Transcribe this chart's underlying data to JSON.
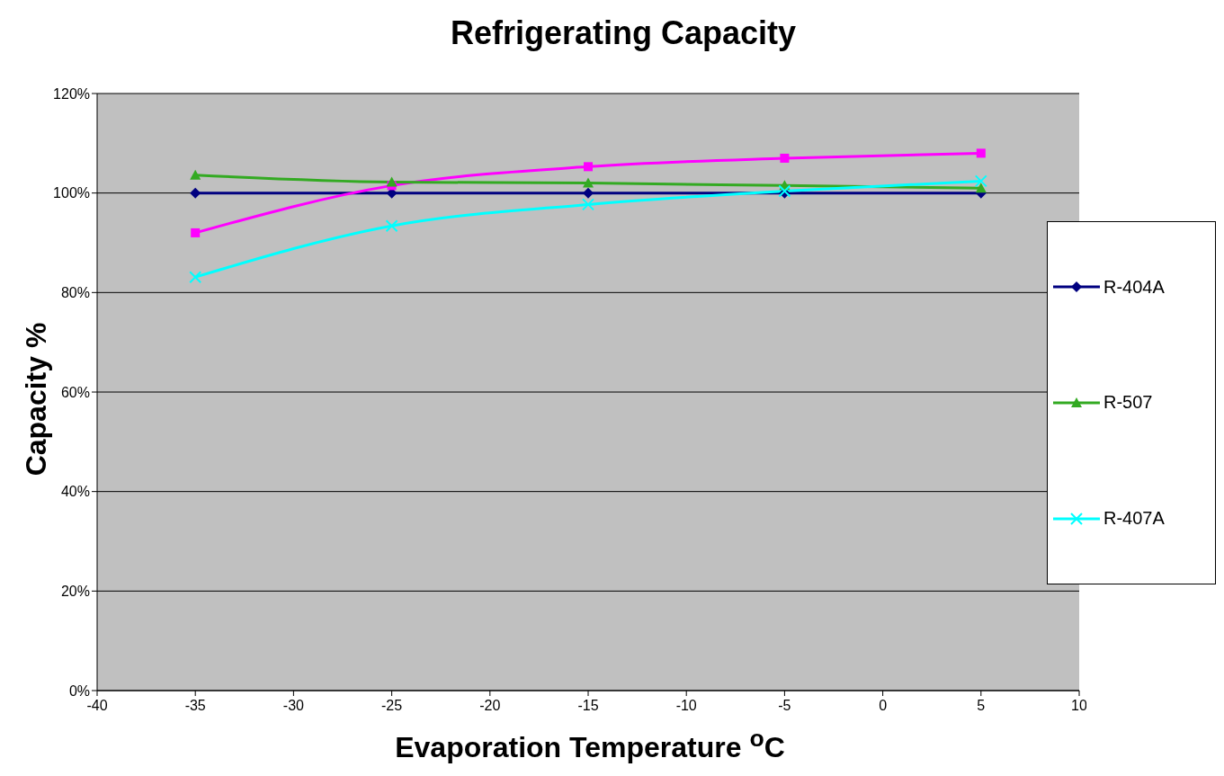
{
  "chart_data": {
    "type": "line",
    "title": "Refrigerating Capacity",
    "xlabel": "Evaporation Temperature $^{o}$C",
    "ylabel": "Capacity %",
    "x": [
      -35,
      -25,
      -15,
      -5,
      5
    ],
    "series": [
      {
        "name": "R-404A",
        "color": "#000080",
        "values": [
          100,
          100,
          100,
          100,
          100
        ],
        "marker": "diamond"
      },
      {
        "color": "#ff00ff",
        "values": [
          92,
          101.5,
          105.3,
          107,
          108
        ],
        "marker": "square"
      },
      {
        "name": "R-507",
        "color": "#33aa22",
        "values": [
          103.6,
          102.2,
          102,
          101.5,
          101
        ],
        "marker": "triangle"
      },
      {
        "name": "R-407A",
        "color": "#00ffff",
        "values": [
          83.1,
          93.4,
          97.7,
          100.4,
          102.4
        ],
        "marker": "cross"
      }
    ],
    "xlim": [
      -40,
      10
    ],
    "xticks": [
      -40,
      -35,
      -30,
      -25,
      -20,
      -15,
      -10,
      -5,
      0,
      5,
      10
    ],
    "ylim": [
      0,
      120
    ],
    "yticks": [
      {
        "value": 0,
        "label": "0%"
      },
      {
        "value": 20,
        "label": "20%"
      },
      {
        "value": 40,
        "label": "40%"
      },
      {
        "value": 60,
        "label": "60%"
      },
      {
        "value": 80,
        "label": "80%"
      },
      {
        "value": 100,
        "label": "100%"
      },
      {
        "value": 120,
        "label": "120%"
      }
    ],
    "grid": "y",
    "legend": "right",
    "line_style": "solid"
  }
}
